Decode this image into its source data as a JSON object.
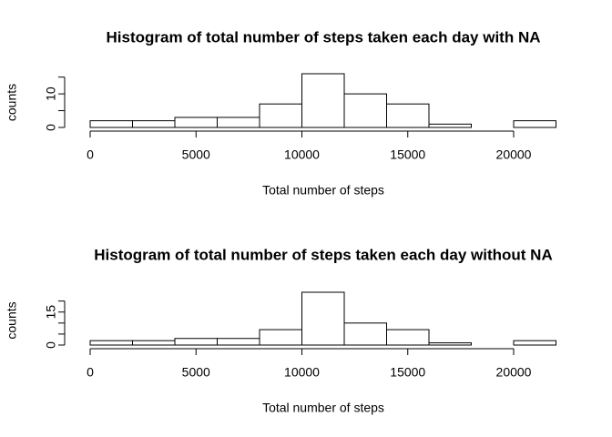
{
  "chart_data": [
    {
      "type": "histogram",
      "title": "Histogram of total number of steps taken each day with NA",
      "xlabel": "Total number of steps",
      "ylabel": "counts",
      "bins": [
        0,
        2000,
        4000,
        6000,
        8000,
        10000,
        12000,
        14000,
        16000,
        18000,
        20000,
        22000
      ],
      "values": [
        2,
        2,
        3,
        3,
        7,
        16,
        10,
        7,
        1,
        0,
        2
      ],
      "xlim": [
        0,
        22000
      ],
      "xticks": [
        0,
        5000,
        10000,
        15000,
        20000
      ],
      "ylim": [
        0,
        16
      ],
      "yticks": [
        0,
        10
      ],
      "yminorticks": [
        5,
        15
      ],
      "color": "#ffffff"
    },
    {
      "type": "histogram",
      "title": "Histogram of total number of steps taken each day without NA",
      "xlabel": "Total number of steps",
      "ylabel": "counts",
      "bins": [
        0,
        2000,
        4000,
        6000,
        8000,
        10000,
        12000,
        14000,
        16000,
        18000,
        20000,
        22000
      ],
      "values": [
        2,
        2,
        3,
        3,
        7,
        24,
        10,
        7,
        1,
        0,
        2
      ],
      "xlim": [
        0,
        22000
      ],
      "xticks": [
        0,
        5000,
        10000,
        15000,
        20000
      ],
      "ylim": [
        0,
        24
      ],
      "yticks": [
        0,
        15
      ],
      "yminorticks": [
        5,
        10,
        20
      ],
      "color": "#ffffff"
    }
  ]
}
